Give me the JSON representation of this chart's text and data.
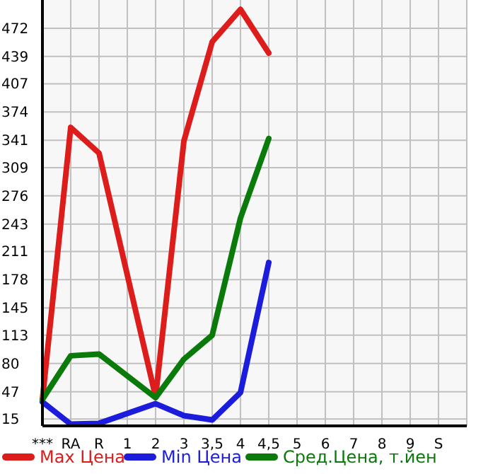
{
  "chart_data": {
    "type": "line",
    "categories": [
      "***",
      "RA",
      "R",
      "1",
      "2",
      "3",
      "3,5",
      "4",
      "4,5",
      "5",
      "6",
      "7",
      "8",
      "9",
      "S"
    ],
    "series": [
      {
        "name": "Max Цена",
        "color": "#dd1c1c",
        "values": [
          38,
          356,
          326,
          null,
          41,
          340,
          456,
          494,
          443,
          null,
          null,
          null,
          null,
          null,
          null
        ]
      },
      {
        "name": "Min Цена",
        "color": "#1c1cdd",
        "values": [
          35,
          9,
          10,
          null,
          33,
          19,
          14,
          46,
          198,
          null,
          null,
          null,
          null,
          null,
          null
        ]
      },
      {
        "name": "Сред.Цена, т.йен",
        "color": "#0a7a0a",
        "values": [
          38,
          89,
          91,
          null,
          40,
          85,
          113,
          250,
          343,
          null,
          null,
          null,
          null,
          null,
          null
        ]
      }
    ],
    "ylim": [
      7,
      505
    ],
    "yticks": [
      15,
      47,
      80,
      113,
      145,
      178,
      211,
      243,
      276,
      309,
      341,
      374,
      407,
      439,
      472
    ],
    "grid": true,
    "legend": "bottom",
    "marker": "none"
  }
}
